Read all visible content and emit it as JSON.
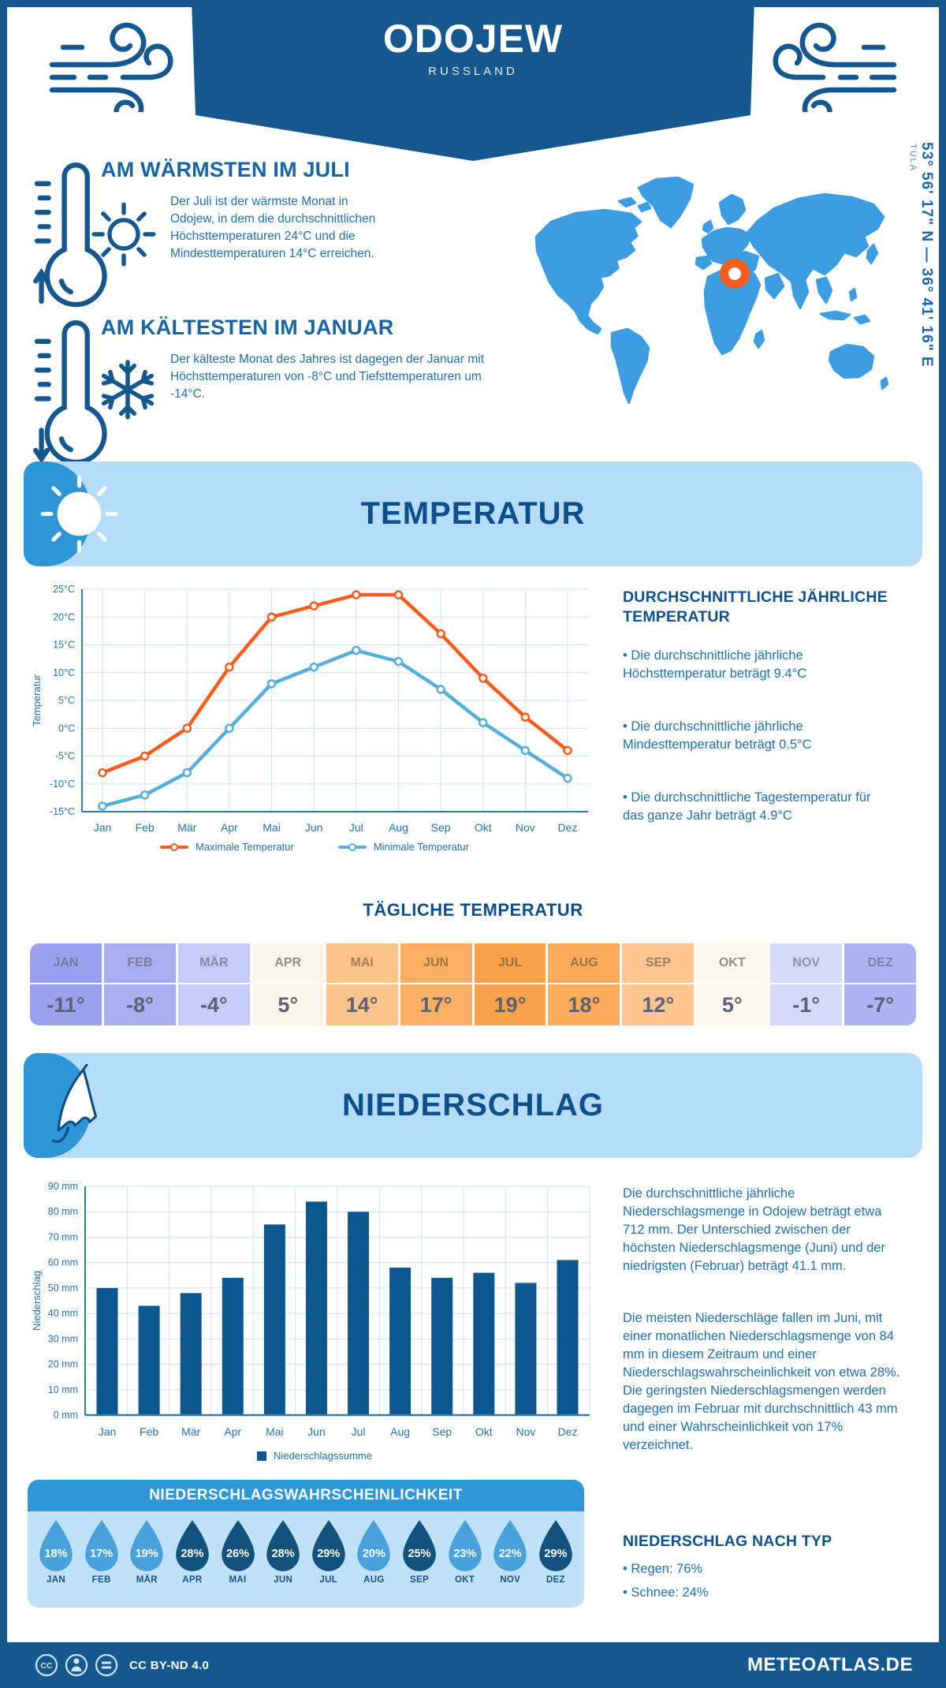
{
  "header": {
    "title": "ODOJEW",
    "subtitle": "RUSSLAND",
    "coordinates": "53° 56' 17\" N — 36° 41' 16\" E",
    "region": "TULA"
  },
  "warmest": {
    "title": "AM WÄRMSTEN IM JULI",
    "text": "Der Juli ist der wärmste Monat in Odojew, in dem die durchschnittlichen Höchsttemperaturen 24°C und die Mindesttemperaturen 14°C erreichen."
  },
  "coldest": {
    "title": "AM KÄLTESTEN IM JANUAR",
    "text": "Der kälteste Monat des Jahres ist dagegen der Januar mit Höchsttemperaturen von -8°C und Tiefsttemperaturen um -14°C."
  },
  "temperature_section": {
    "title": "TEMPERATUR",
    "info_title": "DURCHSCHNITTLICHE JÄHRLICHE TEMPERATUR",
    "items": [
      "• Die durchschnittliche jährliche Höchsttemperatur beträgt 9.4°C",
      "• Die durchschnittliche jährliche Mindesttemperatur beträgt 0.5°C",
      "• Die durchschnittliche Tagestemperatur für das ganze Jahr beträgt 4.9°C"
    ]
  },
  "daily_temperature": {
    "title": "TÄGLICHE TEMPERATUR",
    "months": [
      "JAN",
      "FEB",
      "MÄR",
      "APR",
      "MAI",
      "JUN",
      "JUL",
      "AUG",
      "SEP",
      "OKT",
      "NOV",
      "DEZ"
    ],
    "values": [
      "-11°",
      "-8°",
      "-4°",
      "5°",
      "14°",
      "17°",
      "19°",
      "18°",
      "12°",
      "5°",
      "-1°",
      "-7°"
    ],
    "cell_colors": [
      "#9aa0ee",
      "#a9aef1",
      "#c7cbf7",
      "#fdf6ea",
      "#fcc38b",
      "#fbaf63",
      "#faa24a",
      "#fbab59",
      "#fcc592",
      "#fdf8ee",
      "#d6daf9",
      "#aeb3f2"
    ],
    "label_colors": [
      "#757a9b",
      "#757a9b",
      "#8487a8",
      "#8f8c80",
      "#a37e52",
      "#9c7442",
      "#956d38",
      "#997243",
      "#a37e52",
      "#908e82",
      "#8b8eae",
      "#7d81a3"
    ]
  },
  "precipitation_section": {
    "title": "NIEDERSCHLAG",
    "p1": "Die durchschnittliche jährliche Niederschlagsmenge in Odojew beträgt etwa 712 mm. Der Unterschied zwischen der höchsten Niederschlagsmenge (Juni) und der niedrigsten (Februar) beträgt 41.1 mm.",
    "p2": "Die meisten Niederschläge fallen im Juni, mit einer monatlichen Niederschlagsmenge von 84 mm in diesem Zeitraum und einer Niederschlagswahrscheinlichkeit von etwa 28%. Die geringsten Niederschlagsmengen werden dagegen im Februar mit durchschnittlich 43 mm und einer Wahrscheinlichkeit von 17% verzeichnet.",
    "type_title": "NIEDERSCHLAG NACH TYP",
    "type_items": [
      "• Regen: 76%",
      "• Schnee: 24%"
    ]
  },
  "precip_probability": {
    "title": "NIEDERSCHLAGSWAHRSCHEINLICHKEIT",
    "months": [
      "JAN",
      "FEB",
      "MÄR",
      "APR",
      "MAI",
      "JUN",
      "JUL",
      "AUG",
      "SEP",
      "OKT",
      "NOV",
      "DEZ"
    ],
    "values": [
      "18%",
      "17%",
      "19%",
      "28%",
      "26%",
      "28%",
      "29%",
      "20%",
      "25%",
      "23%",
      "22%",
      "29%"
    ],
    "colors": [
      "#49a1dc",
      "#49a1dc",
      "#49a1dc",
      "#14527e",
      "#14527e",
      "#14527e",
      "#14527e",
      "#49a1dc",
      "#14527e",
      "#49a1dc",
      "#49a1dc",
      "#14527e"
    ]
  },
  "chart_data": [
    {
      "id": "temperature-line-chart",
      "type": "line",
      "categories": [
        "Jan",
        "Feb",
        "Mär",
        "Apr",
        "Mai",
        "Jun",
        "Jul",
        "Aug",
        "Sep",
        "Okt",
        "Nov",
        "Dez"
      ],
      "ylabel": "Temperatur",
      "ylim": [
        -15,
        25
      ],
      "ytick_step": 5,
      "ytick_suffix": "°C",
      "grid": true,
      "legend_position": "bottom",
      "series": [
        {
          "name": "Maximale Temperatur",
          "color": "#f95d1d",
          "values": [
            -8,
            -5,
            0,
            11,
            20,
            22,
            24,
            24,
            17,
            9,
            2,
            -4
          ]
        },
        {
          "name": "Minimale Temperatur",
          "color": "#56aedd",
          "values": [
            -14,
            -12,
            -8,
            0,
            8,
            11,
            14,
            12,
            7,
            1,
            -4,
            -9
          ]
        }
      ]
    },
    {
      "id": "precipitation-bar-chart",
      "type": "bar",
      "categories": [
        "Jan",
        "Feb",
        "Mär",
        "Apr",
        "Mai",
        "Jun",
        "Jul",
        "Aug",
        "Sep",
        "Okt",
        "Nov",
        "Dez"
      ],
      "ylabel": "Niederschlag",
      "ylim": [
        0,
        90
      ],
      "ytick_step": 10,
      "ytick_suffix": " mm",
      "grid": true,
      "legend_position": "bottom",
      "series": [
        {
          "name": "Niederschlagssumme",
          "color": "#0d578f",
          "values": [
            50,
            43,
            48,
            54,
            75,
            84,
            80,
            58,
            54,
            56,
            52,
            61
          ]
        }
      ]
    }
  ],
  "footer": {
    "license": "CC BY-ND 4.0",
    "brand": "METEOATLAS.DE"
  },
  "colors": {
    "dark_blue": "#15578f",
    "accent_blue": "#2d96d6",
    "light_banner": "#b5dcf8",
    "map_blue": "#3d9de2",
    "orange": "#f95d1d",
    "sky_blue": "#56aedd",
    "grid": "#cfe2f2",
    "axis": "#2e7cb0"
  }
}
